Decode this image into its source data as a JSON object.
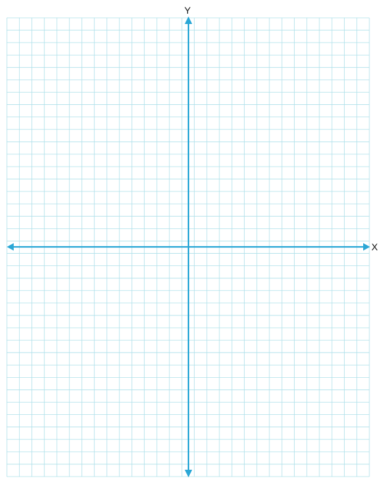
{
  "diagram": {
    "type": "coordinate-plane",
    "x_axis_label": "X",
    "y_axis_label": "Y",
    "grid_columns": 29,
    "grid_rows": 37,
    "colors": {
      "grid_line": "#aee0ea",
      "axis": "#2aa7d6",
      "label": "#111111",
      "background": "#ffffff"
    }
  }
}
